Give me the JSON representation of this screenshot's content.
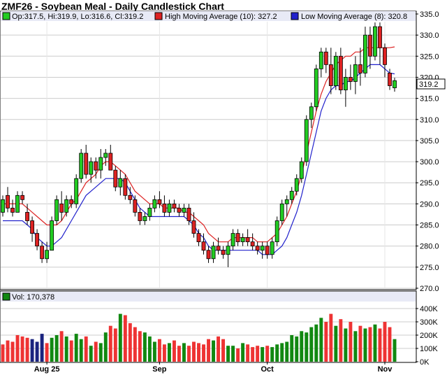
{
  "title": "ZMF26 - Soybean Meal - Daily Candlestick Chart",
  "legend": {
    "ohlc": "Op:317.5, Hi:319.9, Lo:316.6, Cl:319.2",
    "high_ma": "High Moving Average (10): 327.2",
    "low_ma": "Low Moving Average (8): 320.8",
    "volume": "Vol: 170,378"
  },
  "colors": {
    "up": "#22cc22",
    "down": "#dd2222",
    "high_ma": "#dd2222",
    "low_ma": "#2222cc",
    "legend_bg": "#e8eaf6",
    "grid": "#cccccc",
    "vol_up": "#118811",
    "vol_down": "#ee3333"
  },
  "last_price_label": "319.2",
  "chart_data": [
    {
      "type": "candlestick",
      "ylim": [
        270,
        335
      ],
      "yticks": [
        "335.0",
        "330.0",
        "325.0",
        "320.0",
        "315.0",
        "310.0",
        "305.0",
        "300.0",
        "295.0",
        "290.0",
        "285.0",
        "280.0",
        "275.0",
        "270.0"
      ],
      "xtick_labels": [
        "Aug 25",
        "Sep",
        "Oct",
        "Nov"
      ],
      "xtick_index": [
        9,
        32,
        54,
        78
      ],
      "candles": [
        [
          288,
          292,
          287,
          291
        ],
        [
          292,
          294,
          288,
          289
        ],
        [
          289,
          291,
          287,
          288
        ],
        [
          288,
          293,
          288,
          292
        ],
        [
          292,
          293,
          290,
          291
        ],
        [
          288,
          290,
          285,
          286
        ],
        [
          286,
          287,
          281,
          283
        ],
        [
          283,
          284,
          279,
          280
        ],
        [
          280,
          281,
          276,
          277
        ],
        [
          277,
          281,
          276,
          279
        ],
        [
          279,
          287,
          279,
          286
        ],
        [
          286,
          292,
          285,
          291
        ],
        [
          290,
          293,
          286,
          288
        ],
        [
          288,
          292,
          287,
          291
        ],
        [
          291,
          292,
          289,
          290
        ],
        [
          290,
          297,
          289,
          296
        ],
        [
          296,
          303,
          295,
          302
        ],
        [
          302,
          304,
          296,
          297
        ],
        [
          297,
          301,
          295,
          300
        ],
        [
          300,
          301,
          296,
          298
        ],
        [
          298,
          303,
          296,
          301
        ],
        [
          301,
          303,
          299,
          302
        ],
        [
          302,
          304,
          298,
          298
        ],
        [
          298,
          299,
          293,
          294
        ],
        [
          294,
          298,
          292,
          296
        ],
        [
          296,
          297,
          291,
          292
        ],
        [
          292,
          294,
          290,
          291
        ],
        [
          291,
          292,
          287,
          288
        ],
        [
          288,
          289,
          285,
          286
        ],
        [
          286,
          288,
          285,
          287
        ],
        [
          287,
          290,
          286,
          289
        ],
        [
          289,
          292,
          288,
          291
        ],
        [
          291,
          293,
          289,
          290
        ],
        [
          290,
          292,
          287,
          288
        ],
        [
          288,
          291,
          287,
          290
        ],
        [
          290,
          291,
          288,
          289
        ],
        [
          289,
          290,
          287,
          288
        ],
        [
          288,
          290,
          287,
          289
        ],
        [
          289,
          290,
          285,
          286
        ],
        [
          286,
          288,
          282,
          283
        ],
        [
          283,
          284,
          280,
          281
        ],
        [
          281,
          283,
          278,
          279
        ],
        [
          279,
          280,
          276,
          277
        ],
        [
          277,
          281,
          276,
          280
        ],
        [
          280,
          282,
          278,
          279
        ],
        [
          279,
          280,
          277,
          278
        ],
        [
          278,
          281,
          275,
          280
        ],
        [
          280,
          284,
          279,
          283
        ],
        [
          283,
          284,
          280,
          281
        ],
        [
          281,
          283,
          280,
          282
        ],
        [
          282,
          284,
          280,
          281
        ],
        [
          281,
          283,
          279,
          280
        ],
        [
          280,
          281,
          278,
          279
        ],
        [
          279,
          281,
          277,
          280
        ],
        [
          280,
          281,
          277,
          278
        ],
        [
          278,
          282,
          277,
          281
        ],
        [
          281,
          287,
          280,
          286
        ],
        [
          286,
          291,
          285,
          290
        ],
        [
          290,
          292,
          287,
          291
        ],
        [
          291,
          294,
          290,
          293
        ],
        [
          293,
          297,
          292,
          296
        ],
        [
          296,
          301,
          295,
          300
        ],
        [
          300,
          311,
          299,
          310
        ],
        [
          310,
          314,
          308,
          313
        ],
        [
          313,
          323,
          312,
          322
        ],
        [
          322,
          327,
          320,
          326
        ],
        [
          326,
          327,
          321,
          323
        ],
        [
          323,
          327,
          316,
          318
        ],
        [
          318,
          326,
          317,
          325
        ],
        [
          325,
          327,
          316,
          317
        ],
        [
          317,
          322,
          313,
          320
        ],
        [
          320,
          323,
          317,
          319
        ],
        [
          319,
          325,
          316,
          323
        ],
        [
          323,
          327,
          318,
          321
        ],
        [
          321,
          332,
          320,
          330
        ],
        [
          330,
          332,
          322,
          325
        ],
        [
          325,
          333,
          324,
          332
        ],
        [
          332,
          333,
          323,
          327
        ],
        [
          327,
          328,
          320,
          323
        ],
        [
          321,
          322,
          317,
          318
        ],
        [
          317.5,
          319.9,
          316.6,
          319.2
        ]
      ],
      "high_ma": [
        290,
        290,
        290,
        290,
        290,
        289,
        288,
        287,
        286,
        285,
        285,
        285,
        286,
        288,
        290,
        291,
        293,
        295,
        296,
        297,
        299,
        300,
        300,
        299,
        298,
        297,
        295,
        293,
        292,
        291,
        290,
        290,
        290,
        289,
        289,
        289,
        289,
        288,
        288,
        287,
        286,
        285,
        283,
        282,
        281,
        281,
        281,
        282,
        282,
        282,
        282,
        282,
        281,
        281,
        281,
        282,
        283,
        285,
        287,
        290,
        293,
        297,
        302,
        307,
        312,
        316,
        319,
        321,
        323,
        324,
        325,
        325,
        326,
        326,
        327,
        327,
        327,
        327,
        327,
        327,
        327.2
      ],
      "low_ma": [
        286,
        286,
        286,
        286,
        286,
        285,
        284,
        282,
        281,
        280,
        280,
        281,
        282,
        284,
        286,
        288,
        290,
        292,
        293,
        294,
        295,
        296,
        296,
        296,
        296,
        295,
        293,
        291,
        289,
        288,
        287,
        287,
        287,
        287,
        287,
        287,
        287,
        287,
        286,
        285,
        283,
        282,
        280,
        279,
        279,
        279,
        279,
        279,
        279,
        279,
        279,
        279,
        279,
        278,
        278,
        278,
        279,
        280,
        282,
        285,
        288,
        292,
        297,
        302,
        307,
        312,
        315,
        317,
        318,
        318,
        319,
        319,
        320,
        321,
        322,
        323,
        323,
        323,
        322,
        321,
        320.8
      ],
      "xlabel": "",
      "ylabel": ""
    },
    {
      "type": "bar",
      "ylim": [
        0,
        400000
      ],
      "yticks": [
        "400K",
        "300K",
        "200K",
        "100K",
        "0K"
      ],
      "volumes": [
        130,
        160,
        150,
        200,
        190,
        180,
        170,
        150,
        210,
        140,
        180,
        200,
        230,
        190,
        160,
        210,
        170,
        190,
        120,
        150,
        140,
        220,
        270,
        250,
        360,
        350,
        290,
        260,
        230,
        220,
        190,
        150,
        170,
        130,
        140,
        160,
        120,
        140,
        120,
        150,
        140,
        130,
        170,
        160,
        190,
        170,
        120,
        120,
        100,
        140,
        130,
        110,
        120,
        110,
        120,
        110,
        130,
        140,
        150,
        200,
        190,
        230,
        220,
        260,
        280,
        330,
        300,
        360,
        270,
        320,
        250,
        300,
        230,
        270,
        250,
        260,
        280,
        250,
        300,
        260,
        170
      ],
      "vol_up": [
        0,
        0,
        0,
        0,
        0,
        0,
        0,
        0,
        0,
        0,
        1,
        1,
        0,
        1,
        0,
        1,
        1,
        0,
        1,
        0,
        1,
        1,
        0,
        0,
        1,
        0,
        0,
        0,
        0,
        1,
        1,
        1,
        0,
        0,
        1,
        0,
        0,
        1,
        0,
        0,
        0,
        0,
        0,
        1,
        0,
        0,
        1,
        1,
        0,
        1,
        0,
        0,
        0,
        1,
        0,
        1,
        1,
        1,
        1,
        1,
        1,
        1,
        1,
        1,
        1,
        1,
        0,
        0,
        1,
        0,
        1,
        0,
        1,
        0,
        1,
        0,
        1,
        0,
        0,
        0,
        1
      ],
      "vol_navy": [
        6,
        7,
        8
      ]
    }
  ]
}
